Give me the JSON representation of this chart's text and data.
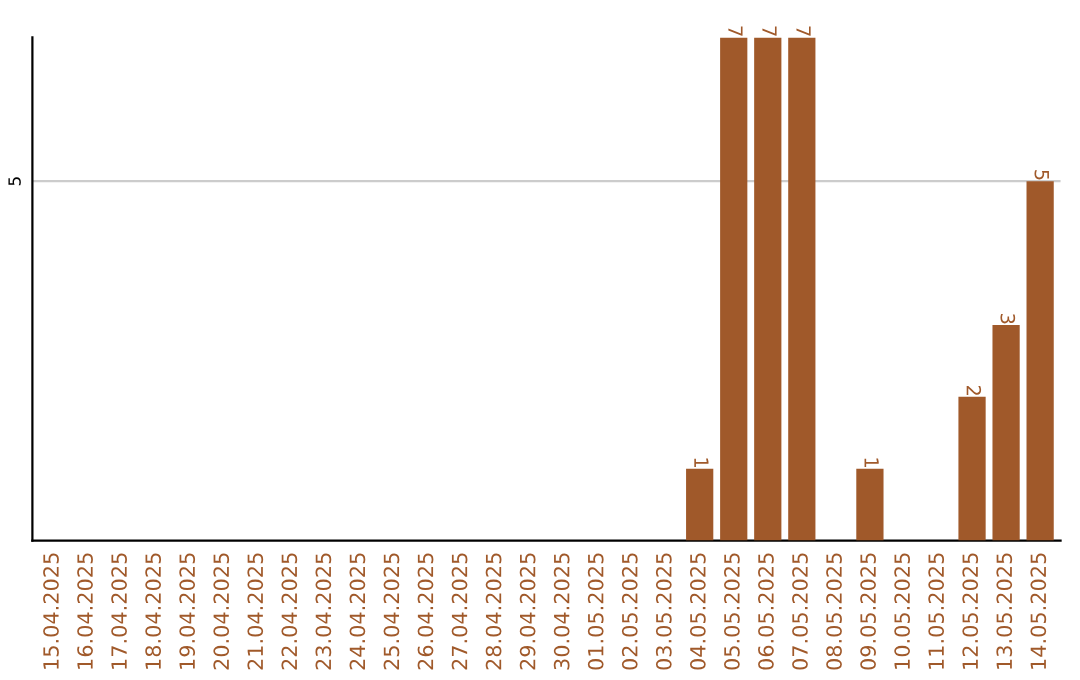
{
  "chart_data": {
    "type": "bar",
    "categories": [
      "15.04.2025",
      "16.04.2025",
      "17.04.2025",
      "18.04.2025",
      "19.04.2025",
      "20.04.2025",
      "21.04.2025",
      "22.04.2025",
      "23.04.2025",
      "24.04.2025",
      "25.04.2025",
      "26.04.2025",
      "27.04.2025",
      "28.04.2025",
      "29.04.2025",
      "30.04.2025",
      "01.05.2025",
      "02.05.2025",
      "03.05.2025",
      "04.05.2025",
      "05.05.2025",
      "06.05.2025",
      "07.05.2025",
      "08.05.2025",
      "09.05.2025",
      "10.05.2025",
      "11.05.2025",
      "12.05.2025",
      "13.05.2025",
      "14.05.2025"
    ],
    "values": [
      null,
      null,
      null,
      null,
      null,
      null,
      null,
      null,
      null,
      null,
      null,
      null,
      null,
      null,
      null,
      null,
      null,
      null,
      null,
      1,
      7,
      7,
      7,
      null,
      1,
      null,
      null,
      2,
      3,
      5
    ],
    "color": "#a0592a",
    "ylim": [
      0,
      7
    ],
    "yticks": [
      5
    ],
    "grid": "y",
    "data_labels": true
  }
}
